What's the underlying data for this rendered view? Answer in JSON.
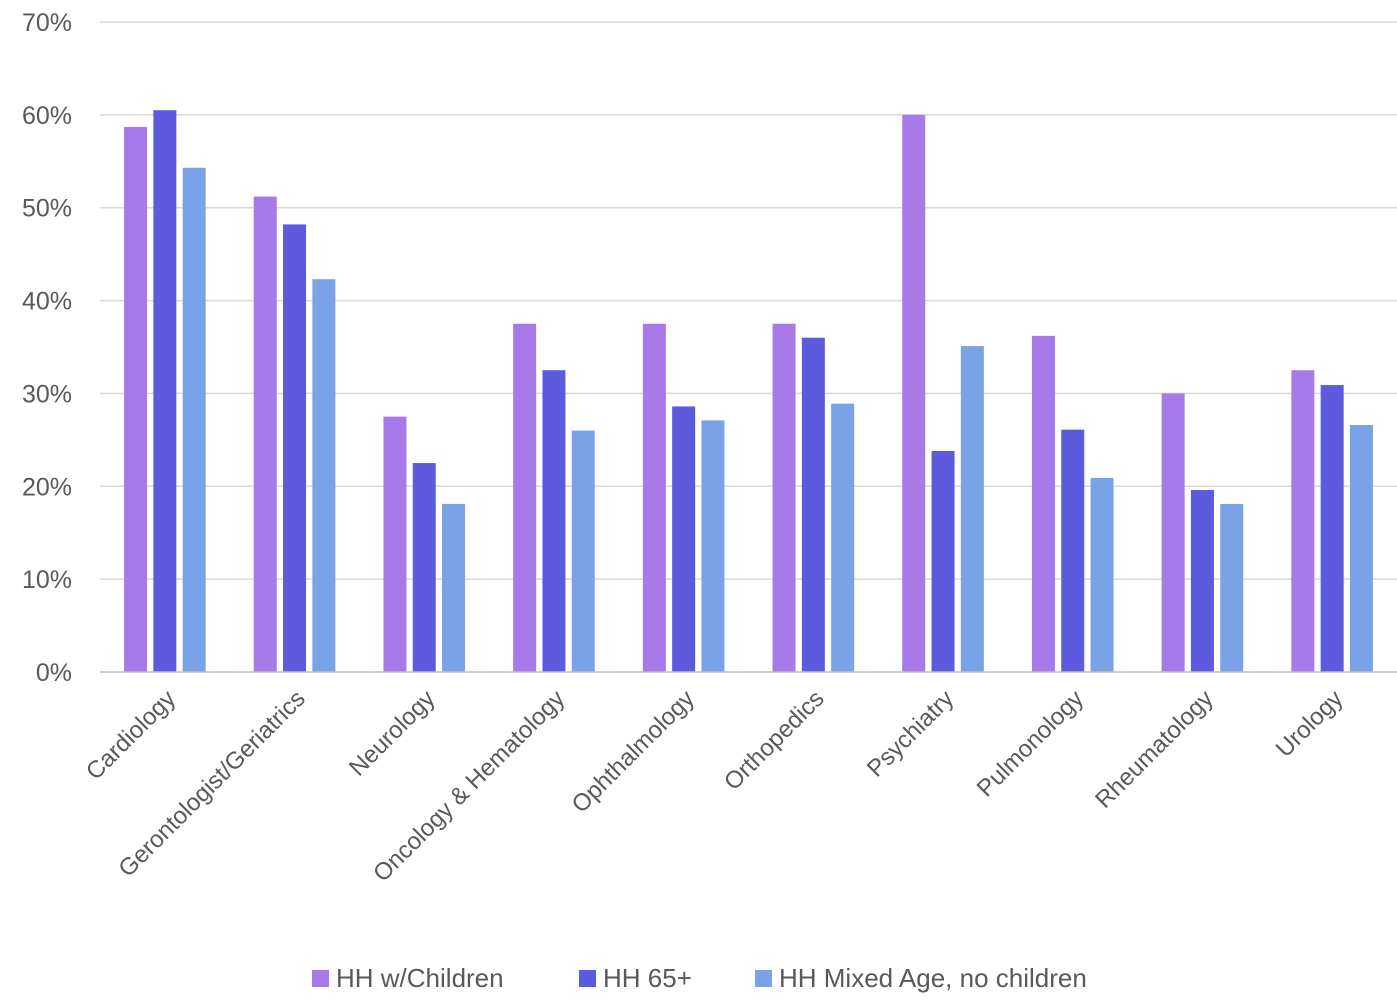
{
  "chart_data": {
    "type": "bar",
    "title": "",
    "xlabel": "",
    "ylabel": "",
    "ylim": [
      0,
      70
    ],
    "yticks": [
      0,
      10,
      20,
      30,
      40,
      50,
      60,
      70
    ],
    "ytick_suffix": "%",
    "grid": true,
    "legend_position": "bottom",
    "categories": [
      "Cardiology",
      "Gerontologist/Geriatrics",
      "Neurology",
      "Oncology & Hematology",
      "Ophthalmology",
      "Orthopedics",
      "Psychiatry",
      "Pulmonology",
      "Rheumatology",
      "Urology"
    ],
    "series": [
      {
        "name": "HH w/Children",
        "color": "#a779e9",
        "values": [
          58.7,
          51.2,
          27.5,
          37.5,
          37.5,
          37.5,
          60.0,
          36.2,
          30.0,
          32.5
        ]
      },
      {
        "name": "HH 65+",
        "color": "#5c5bdd",
        "values": [
          60.5,
          48.2,
          22.5,
          32.5,
          28.6,
          36.0,
          23.8,
          26.1,
          19.6,
          30.9
        ]
      },
      {
        "name": "HH Mixed Age, no children",
        "color": "#79a3e6",
        "values": [
          54.3,
          42.3,
          18.1,
          26.0,
          27.1,
          28.9,
          35.1,
          20.9,
          18.1,
          26.6
        ]
      }
    ]
  }
}
